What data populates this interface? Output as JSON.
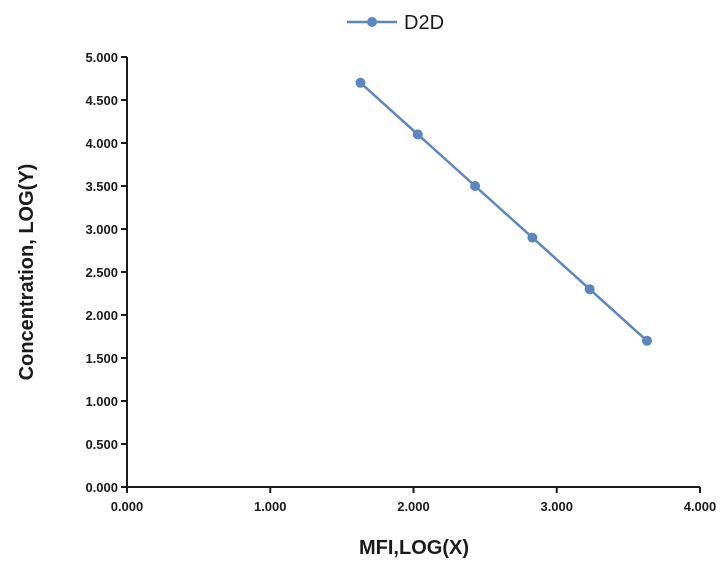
{
  "chart_data": {
    "type": "line",
    "title": "",
    "xlabel": "MFI,LOG(X)",
    "ylabel": "Concentration,  LOG(Y)",
    "xlim": [
      0,
      4
    ],
    "ylim": [
      0,
      5
    ],
    "x_ticks": [
      0,
      1,
      2,
      3,
      4
    ],
    "y_ticks": [
      0,
      0.5,
      1,
      1.5,
      2,
      2.5,
      3,
      3.5,
      4,
      4.5,
      5
    ],
    "x_tick_labels": [
      "0.000",
      "1.000",
      "2.000",
      "3.000",
      "4.000"
    ],
    "y_tick_labels": [
      "0.000",
      "0.500",
      "1.000",
      "1.500",
      "2.000",
      "2.500",
      "3.000",
      "3.500",
      "4.000",
      "4.500",
      "5.000"
    ],
    "grid": false,
    "legend_position": "top-center",
    "series": [
      {
        "name": "D2D",
        "color": "#5b87c1",
        "x": [
          1.63,
          2.03,
          2.43,
          2.83,
          3.23,
          3.63
        ],
        "y": [
          4.7,
          4.1,
          3.5,
          2.9,
          2.3,
          1.7
        ]
      }
    ]
  }
}
